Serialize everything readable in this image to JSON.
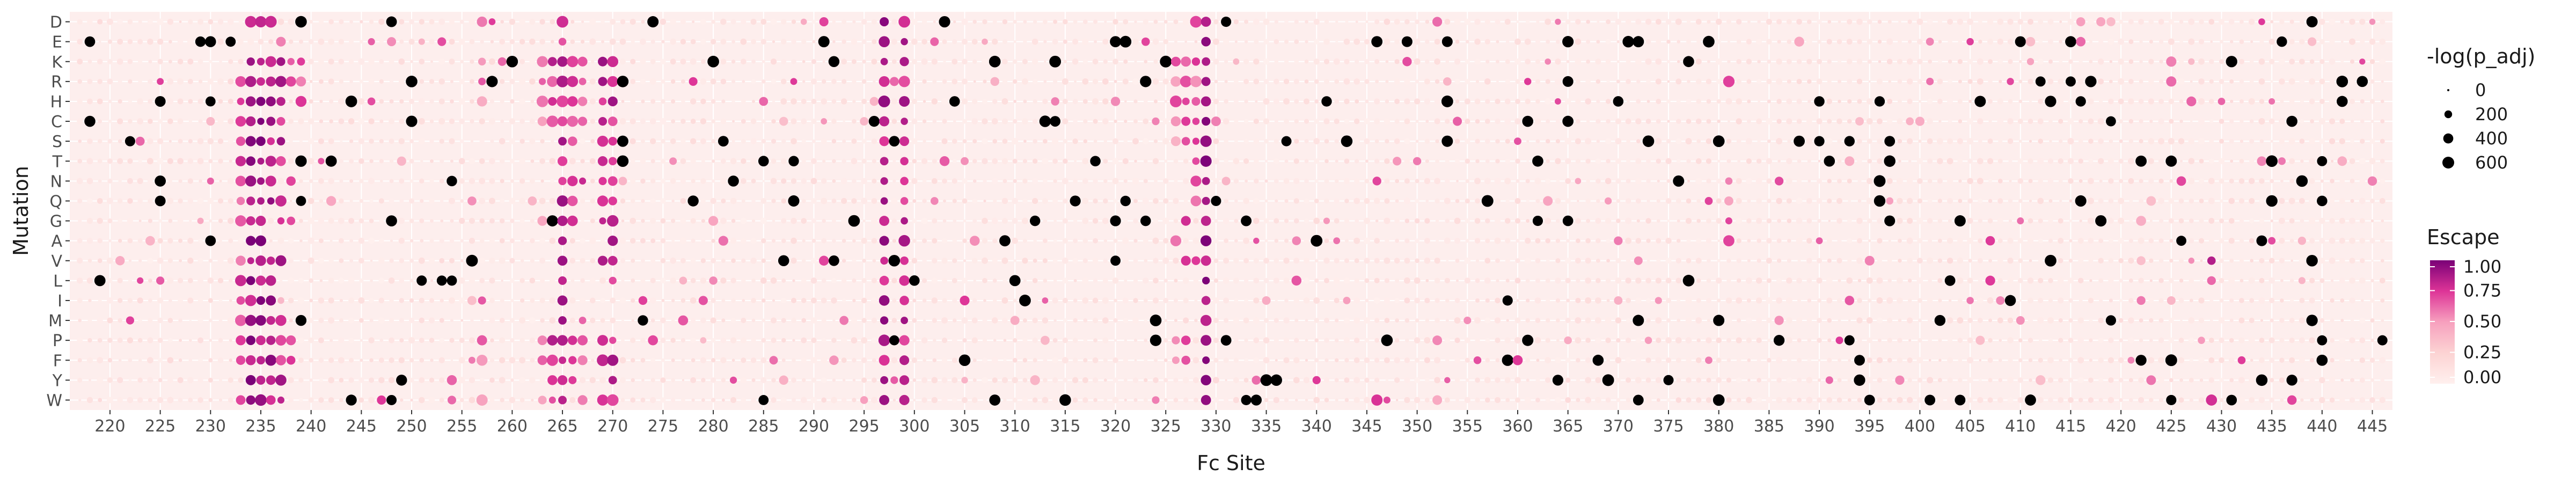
{
  "chart_data": {
    "type": "scatter",
    "subtype": "dot-matrix",
    "xlabel": "Fc Site",
    "ylabel": "Mutation",
    "x_range": [
      216,
      447
    ],
    "x_ticks": [
      220,
      225,
      230,
      235,
      240,
      245,
      250,
      255,
      260,
      265,
      270,
      275,
      280,
      285,
      290,
      295,
      300,
      305,
      310,
      315,
      320,
      325,
      330,
      335,
      340,
      345,
      350,
      355,
      360,
      365,
      370,
      375,
      380,
      385,
      390,
      395,
      400,
      405,
      410,
      415,
      420,
      425,
      430,
      435,
      440,
      445
    ],
    "mutations": [
      "D",
      "E",
      "K",
      "R",
      "H",
      "C",
      "S",
      "T",
      "N",
      "Q",
      "G",
      "A",
      "V",
      "L",
      "I",
      "M",
      "P",
      "F",
      "Y",
      "W"
    ],
    "size_legend": {
      "title": "-log(p_adj)",
      "breaks": [
        0,
        200,
        400,
        600
      ]
    },
    "color_legend": {
      "title": "Escape",
      "breaks": [
        0.0,
        0.25,
        0.5,
        0.75,
        1.0
      ],
      "break_labels": [
        "0.00",
        "0.25",
        "0.50",
        "0.75",
        "1.00"
      ],
      "low_color": "#fff0ee",
      "high_color": "#7a0177"
    },
    "panel_background": "#fdeeed",
    "grid": true,
    "legend_position": "right",
    "high_escape_columns": [
      {
        "site": 233,
        "rows": "R,H,C,S,T,N,Q,G,V,L,I,M,P,F,W",
        "escape": 0.7
      },
      {
        "site": 234,
        "rows": "D,K,R,H,C,S,T,N,Q,G,A,V,L,I,M,P,F,Y,W",
        "escape": 0.9
      },
      {
        "site": 235,
        "rows": "D,K,R,H,C,S,T,N,Q,G,A,V,L,I,M,P,F,Y,W",
        "escape": 0.9
      },
      {
        "site": 236,
        "rows": "D,K,R,H,C,S,T,N,Q,V,L,I,M,P,F,Y,W",
        "escape": 0.85
      },
      {
        "site": 237,
        "rows": "K,R,H,C,S,T,Q,G,V,M,P,F,Y,W",
        "escape": 0.8
      },
      {
        "site": 238,
        "rows": "K,R,F,G,P",
        "escape": 0.7
      },
      {
        "site": 239,
        "rows": "K,R,H",
        "escape": 0.65
      },
      {
        "site": 257,
        "rows": "D,K,R,H,P,F,W",
        "escape": 0.55
      },
      {
        "site": 263,
        "rows": "K,R,H,C,P,F,W",
        "escape": 0.6
      },
      {
        "site": 264,
        "rows": "K,R,H,C,P,F,Y,W",
        "escape": 0.75
      },
      {
        "site": 265,
        "rows": "D,E,K,R,H,C,S,T,N,Q,G,A,V,L,I,M,P,F,Y,W",
        "escape": 0.8
      },
      {
        "site": 266,
        "rows": "K,R,H,C,S,N,Q,G,P,F,Y",
        "escape": 0.75
      },
      {
        "site": 267,
        "rows": "K,R,H,C,N,P,F,W",
        "escape": 0.7
      },
      {
        "site": 269,
        "rows": "K,R,H,C,S,T,N,Q,G,V,P,F,W",
        "escape": 0.8
      },
      {
        "site": 270,
        "rows": "K,R,H,C,S,T,N,Q,G,A,V,L,P,F,Y,W",
        "escape": 0.8
      },
      {
        "site": 297,
        "rows": "D,E,K,R,H,C,S,T,N,Q,G,A,V,L,I,M,P,F,Y,W",
        "escape": 0.85
      },
      {
        "site": 299,
        "rows": "D,E,K,R,H,C,S,T,N,Q,G,A,V,L,I,M,P,F,Y,W",
        "escape": 0.8
      },
      {
        "site": 326,
        "rows": "K,R,H,C,A,P,F",
        "escape": 0.6
      },
      {
        "site": 327,
        "rows": "K,R,H,C,S,G,V,P,F",
        "escape": 0.75
      },
      {
        "site": 328,
        "rows": "D,K,R,H,C,S,T,N,Q,V",
        "escape": 0.65
      },
      {
        "site": 329,
        "rows": "D,E,K,R,H,C,S,T,N,Q,G,A,V,L,I,M,P,F,Y,W",
        "escape": 0.9
      },
      {
        "site": 381,
        "rows": "R,N,Q,G,A",
        "escape": 0.6
      },
      {
        "site": 425,
        "rows": "K,R",
        "escape": 0.7
      },
      {
        "site": 429,
        "rows": "V,L,W",
        "escape": 0.75
      },
      {
        "site": 346,
        "rows": "N,W",
        "escape": 0.7
      }
    ]
  }
}
